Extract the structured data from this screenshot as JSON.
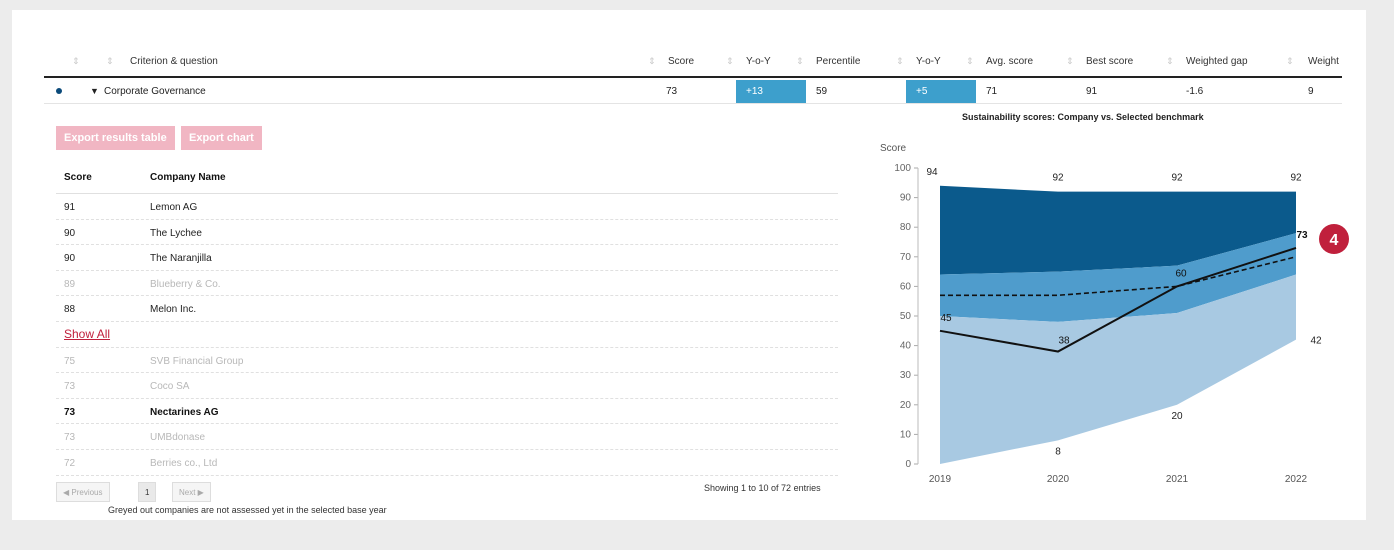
{
  "columns": [
    "Criterion & question",
    "Score",
    "Y-o-Y",
    "Percentile",
    "Y-o-Y",
    "Avg. score",
    "Best score",
    "Weighted gap",
    "Weight"
  ],
  "summary_row": {
    "label": "Corporate Governance",
    "score": "73",
    "yoy1": "+13",
    "percentile": "59",
    "yoy2": "+5",
    "avg": "71",
    "best": "91",
    "gap": "-1.6",
    "weight": "9"
  },
  "buttons": {
    "export_table": "Export results table",
    "export_chart": "Export chart"
  },
  "ranking": {
    "headers": [
      "Score",
      "Company Name"
    ],
    "rows_top": [
      {
        "score": "91",
        "name": "Lemon AG",
        "grey": false
      },
      {
        "score": "90",
        "name": "The Lychee",
        "grey": false
      },
      {
        "score": "90",
        "name": "The Naranjilla",
        "grey": false
      },
      {
        "score": "89",
        "name": "Blueberry & Co.",
        "grey": true
      },
      {
        "score": "88",
        "name": "Melon Inc.",
        "grey": false
      }
    ],
    "show_all": "Show All",
    "rows_bottom": [
      {
        "score": "75",
        "name": "SVB Financial Group",
        "grey": true,
        "bold": false
      },
      {
        "score": "73",
        "name": "Coco SA",
        "grey": true,
        "bold": false
      },
      {
        "score": "73",
        "name": "Nectarines AG",
        "grey": false,
        "bold": true
      },
      {
        "score": "73",
        "name": "UMBdonase",
        "grey": true,
        "bold": false
      },
      {
        "score": "72",
        "name": "Berries co., Ltd",
        "grey": true,
        "bold": false
      }
    ]
  },
  "pager": {
    "prev": "◀ Previous",
    "page": "1",
    "next": "Next ▶"
  },
  "showing": "Showing 1 to 10 of 72 entries",
  "note": "Greyed out companies are not assessed yet in the selected base year",
  "badge": "4",
  "colors": {
    "dark": "#0b5a8c",
    "mid": "#1f80b8",
    "light": "#4f9ccc",
    "lightest": "#a8c9e2",
    "accent": "#c0203c",
    "highlight": "#3d9fcc"
  },
  "chart_data": {
    "type": "area",
    "title": "Sustainability scores: Company vs. Selected benchmark",
    "ylabel": "Score",
    "ylim": [
      0,
      100
    ],
    "yticks": [
      0,
      10,
      20,
      30,
      40,
      50,
      60,
      70,
      80,
      90,
      100
    ],
    "x": [
      "2019",
      "2020",
      "2021",
      "2022"
    ],
    "bands": [
      {
        "lower": [
          94,
          92,
          92,
          92
        ],
        "upper": [
          94,
          92,
          92,
          92
        ]
      },
      {
        "lower": [
          64,
          65,
          67,
          78
        ],
        "upper": [
          94,
          92,
          92,
          92
        ]
      },
      {
        "lower": [
          50,
          48,
          51,
          64
        ],
        "upper": [
          64,
          65,
          67,
          78
        ]
      },
      {
        "lower": [
          0,
          8,
          20,
          42
        ],
        "upper": [
          50,
          48,
          51,
          64
        ]
      }
    ],
    "top_labels": [
      "94",
      "92",
      "92",
      "92"
    ],
    "bottom_labels": [
      "",
      "8",
      "20",
      "42"
    ],
    "company": {
      "values": [
        45,
        38,
        60,
        73
      ],
      "labels": [
        "45",
        "38",
        "60",
        "73"
      ]
    },
    "benchmark_dashed": [
      57,
      57,
      60,
      70
    ]
  }
}
